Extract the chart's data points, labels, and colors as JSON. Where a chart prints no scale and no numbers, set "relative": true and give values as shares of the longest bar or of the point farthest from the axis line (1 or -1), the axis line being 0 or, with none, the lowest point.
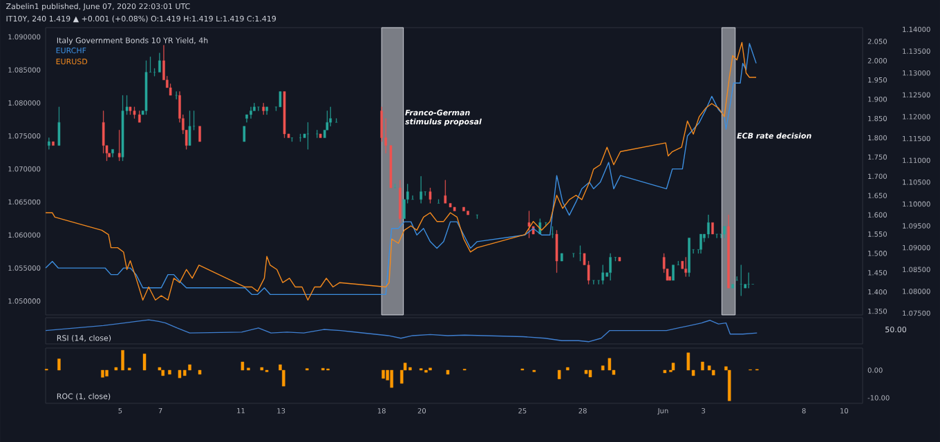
{
  "chart_data": [
    {
      "type": "candlestick",
      "title": "Italy Government Bonds 10 YR Yield, 4h",
      "annotations": [
        "Zabelin1 published, June 07, 2020 22:03:01 UTC",
        "IT10Y, 240 1.419 ▲ +0.001 (+0.08%) O:1.419 H:1.419 L:1.419 C:1.419"
      ],
      "x": [
        "2020-05-01T11:00",
        "2020-05-01T16:00",
        "2020-05-01T23:00",
        "2020-05-04T04:00",
        "2020-05-04T08:00",
        "2020-05-04T11:00",
        "2020-05-04T15:00",
        "2020-05-04T23:00",
        "2020-05-05T03:00",
        "2020-05-05T08:00",
        "2020-05-05T12:00",
        "2020-05-05T17:00",
        "2020-05-05T23:00",
        "2020-05-06T03:00",
        "2020-05-06T07:00",
        "2020-05-06T12:00",
        "2020-05-06T17:00",
        "2020-05-06T23:00",
        "2020-05-07T04:00",
        "2020-05-07T08:00",
        "2020-05-07T12:00",
        "2020-05-07T19:00",
        "2020-05-07T23:00",
        "2020-05-08T03:00",
        "2020-05-08T07:00",
        "2020-05-08T11:00",
        "2020-05-08T16:00",
        "2020-05-08T23:00",
        "2020-05-11T04:00",
        "2020-05-11T07:00",
        "2020-05-11T12:00",
        "2020-05-11T16:00",
        "2020-05-11T21:00",
        "2020-05-12T03:00",
        "2020-05-12T07:00",
        "2020-05-12T18:00",
        "2020-05-12T23:00",
        "2020-05-13T04:00",
        "2020-05-13T09:00",
        "2020-05-13T13:00",
        "2020-05-13T23:00",
        "2020-05-14T04:00",
        "2020-05-14T08:00",
        "2020-05-14T19:00",
        "2020-05-14T23:00",
        "2020-05-15T04:00",
        "2020-05-15T07:00",
        "2020-05-15T11:00",
        "2020-05-15T18:00",
        "2020-05-18T00:00",
        "2020-05-18T05:00",
        "2020-05-18T11:00",
        "2020-05-18T16:00",
        "2020-05-18T22:00",
        "2020-05-19T03:00",
        "2020-05-19T07:00",
        "2020-05-19T13:00",
        "2020-05-19T23:00",
        "2020-05-20T04:00",
        "2020-05-20T10:00",
        "2020-05-20T20:00",
        "2020-05-21T04:00",
        "2020-05-21T10:00",
        "2020-05-21T15:00",
        "2020-05-22T02:00",
        "2020-05-22T07:00",
        "2020-05-22T18:00",
        "2020-05-25T08:00",
        "2020-05-25T13:00",
        "2020-05-25T21:00",
        "2020-05-26T04:00",
        "2020-05-26T12:00",
        "2020-05-26T17:00",
        "2020-05-26T23:00",
        "2020-05-27T13:00",
        "2020-05-27T21:00",
        "2020-05-28T02:00",
        "2020-05-28T07:00",
        "2020-05-28T13:00",
        "2020-05-28T19:00",
        "2020-05-29T00:00",
        "2020-05-29T05:00",
        "2020-05-29T09:00",
        "2020-05-29T15:00",
        "2020-05-29T20:00",
        "2020-06-01T01:00",
        "2020-06-01T05:00",
        "2020-06-01T08:00",
        "2020-06-01T12:00",
        "2020-06-01T18:00",
        "2020-06-01T23:00",
        "2020-06-02T03:00",
        "2020-06-02T07:00",
        "2020-06-02T12:00",
        "2020-06-02T18:00",
        "2020-06-02T21:00",
        "2020-06-03T01:00",
        "2020-06-03T06:00",
        "2020-06-03T11:00",
        "2020-06-03T16:00",
        "2020-06-03T21:00",
        "2020-06-04T01:00",
        "2020-06-04T06:00",
        "2020-06-04T11:00",
        "2020-06-04T16:00",
        "2020-06-04T21:00",
        "2020-06-05T02:00",
        "2020-06-05T06:00",
        "2020-06-05T11:00"
      ],
      "ohlc": [
        [
          1.78,
          1.8,
          1.77,
          1.79
        ],
        [
          1.79,
          1.79,
          1.78,
          1.78
        ],
        [
          1.78,
          1.88,
          1.78,
          1.84
        ],
        [
          1.84,
          1.87,
          1.76,
          1.78
        ],
        [
          1.78,
          1.78,
          1.74,
          1.76
        ],
        [
          1.76,
          1.76,
          1.75,
          1.75
        ],
        [
          1.76,
          1.77,
          1.75,
          1.77
        ],
        [
          1.76,
          1.82,
          1.74,
          1.75
        ],
        [
          1.75,
          1.91,
          1.74,
          1.87
        ],
        [
          1.87,
          1.91,
          1.86,
          1.88
        ],
        [
          1.88,
          1.88,
          1.86,
          1.87
        ],
        [
          1.87,
          1.88,
          1.85,
          1.86
        ],
        [
          1.86,
          1.87,
          1.84,
          1.84
        ],
        [
          1.86,
          1.87,
          1.86,
          1.87
        ],
        [
          1.87,
          2.0,
          1.86,
          1.97
        ],
        [
          1.97,
          2.01,
          1.97,
          1.97
        ],
        [
          1.97,
          1.98,
          1.96,
          1.97
        ],
        [
          1.97,
          2.02,
          1.97,
          2.0
        ],
        [
          2.0,
          2.04,
          1.95,
          1.95
        ],
        [
          1.95,
          1.96,
          1.93,
          1.93
        ],
        [
          1.93,
          1.94,
          1.91,
          1.91
        ],
        [
          1.91,
          1.92,
          1.9,
          1.91
        ],
        [
          1.91,
          1.92,
          1.84,
          1.85
        ],
        [
          1.85,
          1.86,
          1.81,
          1.82
        ],
        [
          1.82,
          1.82,
          1.77,
          1.78
        ],
        [
          1.78,
          1.87,
          1.78,
          1.83
        ],
        [
          1.83,
          1.87,
          1.82,
          1.83
        ],
        [
          1.83,
          1.83,
          1.79,
          1.79
        ],
        [
          1.79,
          1.83,
          1.79,
          1.83
        ],
        [
          1.85,
          1.86,
          1.84,
          1.86
        ],
        [
          1.86,
          1.88,
          1.85,
          1.87
        ],
        [
          1.87,
          1.89,
          1.87,
          1.88
        ],
        [
          1.88,
          1.88,
          1.87,
          1.88
        ],
        [
          1.88,
          1.89,
          1.86,
          1.87
        ],
        [
          1.87,
          1.88,
          1.86,
          1.88
        ],
        [
          1.88,
          1.88,
          1.87,
          1.88
        ],
        [
          1.88,
          1.92,
          1.88,
          1.92
        ],
        [
          1.92,
          1.92,
          1.8,
          1.81
        ],
        [
          1.81,
          1.81,
          1.8,
          1.8
        ],
        [
          1.8,
          1.8,
          1.79,
          1.8
        ],
        [
          1.8,
          1.81,
          1.79,
          1.8
        ],
        [
          1.8,
          1.81,
          1.8,
          1.81
        ],
        [
          1.81,
          1.84,
          1.77,
          1.81
        ],
        [
          1.81,
          1.82,
          1.8,
          1.81
        ],
        [
          1.81,
          1.81,
          1.8,
          1.8
        ],
        [
          1.8,
          1.82,
          1.8,
          1.82
        ],
        [
          1.82,
          1.87,
          1.82,
          1.84
        ],
        [
          1.84,
          1.88,
          1.83,
          1.85
        ],
        [
          1.84,
          1.85,
          1.84,
          1.84
        ],
        [
          1.87,
          1.88,
          1.79,
          1.8
        ],
        [
          1.8,
          1.85,
          1.76,
          1.78
        ],
        [
          1.78,
          1.78,
          1.67,
          1.67
        ],
        [
          1.67,
          1.68,
          1.67,
          1.67
        ],
        [
          1.67,
          1.69,
          1.58,
          1.59
        ],
        [
          1.59,
          1.64,
          1.59,
          1.64
        ],
        [
          1.64,
          1.68,
          1.63,
          1.66
        ],
        [
          1.64,
          1.65,
          1.64,
          1.64
        ],
        [
          1.64,
          1.7,
          1.63,
          1.66
        ],
        [
          1.66,
          1.66,
          1.65,
          1.66
        ],
        [
          1.66,
          1.67,
          1.63,
          1.64
        ],
        [
          1.63,
          1.64,
          1.63,
          1.63
        ],
        [
          1.65,
          1.69,
          1.63,
          1.63
        ],
        [
          1.63,
          1.63,
          1.62,
          1.62
        ],
        [
          1.62,
          1.62,
          1.61,
          1.61
        ],
        [
          1.62,
          1.62,
          1.61,
          1.61
        ],
        [
          1.61,
          1.61,
          1.6,
          1.6
        ],
        [
          1.6,
          1.6,
          1.59,
          1.6
        ],
        [
          1.58,
          1.61,
          1.54,
          1.57
        ],
        [
          1.57,
          1.57,
          1.55,
          1.55
        ],
        [
          1.55,
          1.59,
          1.55,
          1.58
        ],
        [
          1.58,
          1.58,
          1.57,
          1.58
        ],
        [
          1.55,
          1.57,
          1.54,
          1.55
        ],
        [
          1.55,
          1.56,
          1.45,
          1.48
        ],
        [
          1.48,
          1.5,
          1.48,
          1.5
        ],
        [
          1.5,
          1.5,
          1.49,
          1.5
        ],
        [
          1.5,
          1.52,
          1.48,
          1.5
        ],
        [
          1.5,
          1.5,
          1.47,
          1.47
        ],
        [
          1.47,
          1.48,
          1.42,
          1.43
        ],
        [
          1.43,
          1.43,
          1.42,
          1.43
        ],
        [
          1.43,
          1.43,
          1.42,
          1.43
        ],
        [
          1.43,
          1.47,
          1.42,
          1.45
        ],
        [
          1.44,
          1.45,
          1.44,
          1.45
        ],
        [
          1.45,
          1.5,
          1.43,
          1.49
        ],
        [
          1.49,
          1.49,
          1.48,
          1.49
        ],
        [
          1.49,
          1.49,
          1.48,
          1.48
        ],
        [
          1.49,
          1.5,
          1.45,
          1.46
        ],
        [
          1.46,
          1.46,
          1.43,
          1.43
        ],
        [
          1.44,
          1.44,
          1.43,
          1.43
        ],
        [
          1.43,
          1.47,
          1.43,
          1.47
        ],
        [
          1.47,
          1.48,
          1.47,
          1.47
        ],
        [
          1.48,
          1.48,
          1.46,
          1.46
        ],
        [
          1.46,
          1.49,
          1.44,
          1.45
        ],
        [
          1.45,
          1.54,
          1.44,
          1.54
        ],
        [
          1.51,
          1.51,
          1.5,
          1.51
        ],
        [
          1.51,
          1.51,
          1.5,
          1.51
        ],
        [
          1.51,
          1.55,
          1.5,
          1.55
        ],
        [
          1.54,
          1.55,
          1.53,
          1.55
        ],
        [
          1.55,
          1.6,
          1.54,
          1.58
        ],
        [
          1.58,
          1.58,
          1.55,
          1.55
        ],
        [
          1.55,
          1.55,
          1.54,
          1.55
        ],
        [
          1.55,
          1.55,
          1.54,
          1.55
        ],
        [
          1.55,
          1.57,
          1.54,
          1.57
        ],
        [
          1.57,
          1.6,
          1.41,
          1.41
        ],
        [
          1.41,
          1.42,
          1.41,
          1.42
        ],
        [
          1.43,
          1.44,
          1.43,
          1.43
        ],
        [
          1.42,
          1.47,
          1.39,
          1.42
        ],
        [
          1.41,
          1.42,
          1.41,
          1.42
        ],
        [
          1.42,
          1.45,
          1.41,
          1.42
        ],
        [
          1.42,
          1.42,
          1.42,
          1.42
        ]
      ],
      "xlim": [
        "2020-05-01T07:00",
        "2020-06-10T22:00"
      ],
      "ylim": [
        1.3404,
        2.0858
      ],
      "yticks": [
        {
          "value": 1.35,
          "label": "1.350"
        },
        {
          "value": 1.4,
          "label": "1.400"
        },
        {
          "value": 1.45,
          "label": "1.450"
        },
        {
          "value": 1.5,
          "label": "1.500"
        },
        {
          "value": 1.55,
          "label": "1.550"
        },
        {
          "value": 1.6,
          "label": "1.600"
        },
        {
          "value": 1.65,
          "label": "1.650"
        },
        {
          "value": 1.7,
          "label": "1.700"
        },
        {
          "value": 1.75,
          "label": "1.750"
        },
        {
          "value": 1.8,
          "label": "1.800"
        },
        {
          "value": 1.85,
          "label": "1.850"
        },
        {
          "value": 1.9,
          "label": "1.900"
        },
        {
          "value": 1.95,
          "label": "1.950"
        },
        {
          "value": 2.0,
          "label": "2.000"
        },
        {
          "value": 2.05,
          "label": "2.050"
        }
      ],
      "y2lim": [
        1.0479,
        1.0914
      ],
      "y2ticks": [
        {
          "value": 1.05,
          "label": "1.050000"
        },
        {
          "value": 1.055,
          "label": "1.055000"
        },
        {
          "value": 1.06,
          "label": "1.060000"
        },
        {
          "value": 1.065,
          "label": "1.065000"
        },
        {
          "value": 1.07,
          "label": "1.070000"
        },
        {
          "value": 1.075,
          "label": "1.075000"
        },
        {
          "value": 1.08,
          "label": "1.080000"
        },
        {
          "value": 1.085,
          "label": "1.085000"
        },
        {
          "value": 1.09,
          "label": "1.090000"
        }
      ],
      "y3lim": [
        1.0746,
        1.1404
      ],
      "y3ticks": [
        {
          "value": 1.075,
          "label": "1.07500"
        },
        {
          "value": 1.08,
          "label": "1.08000"
        },
        {
          "value": 1.085,
          "label": "1.08500"
        },
        {
          "value": 1.09,
          "label": "1.09000"
        },
        {
          "value": 1.095,
          "label": "1.09500"
        },
        {
          "value": 1.1,
          "label": "1.10000"
        },
        {
          "value": 1.105,
          "label": "1.10500"
        },
        {
          "value": 1.11,
          "label": "1.11000"
        },
        {
          "value": 1.115,
          "label": "1.11500"
        },
        {
          "value": 1.12,
          "label": "1.12000"
        },
        {
          "value": 1.125,
          "label": "1.12500"
        },
        {
          "value": 1.13,
          "label": "1.13000"
        },
        {
          "value": 1.135,
          "label": "1.13500"
        },
        {
          "value": 1.14,
          "label": "1.14000"
        }
      ],
      "bands": [
        {
          "axis": "x",
          "from": "2020-05-18T00:00",
          "to": "2020-05-19T02:00",
          "label": "Franco-German stimulus proposal",
          "color": "#7a7d85"
        },
        {
          "axis": "x",
          "from": "2020-06-03T22:00",
          "to": "2020-06-04T14:00",
          "label": "ECB rate decision",
          "color": "#7a7d85"
        }
      ],
      "series": [
        {
          "name": "EURCHF",
          "type": "line",
          "axis": "y2",
          "color": "#3d8fe0",
          "x": [
            "2020-05-01T07:00",
            "2020-05-01T15:00",
            "2020-05-01T22:00",
            "2020-05-04T06:00",
            "2020-05-04T13:00",
            "2020-05-04T21:00",
            "2020-05-05T04:00",
            "2020-05-05T12:00",
            "2020-05-05T19:00",
            "2020-05-06T03:00",
            "2020-05-06T10:00",
            "2020-05-06T18:00",
            "2020-05-07T01:00",
            "2020-05-07T09:00",
            "2020-05-07T16:00",
            "2020-05-07T23:00",
            "2020-05-08T07:00",
            "2020-05-08T14:00",
            "2020-05-08T22:00",
            "2020-05-11T05:00",
            "2020-05-11T13:00",
            "2020-05-11T20:00",
            "2020-05-12T04:00",
            "2020-05-12T11:00",
            "2020-05-12T19:00",
            "2020-05-13T02:00",
            "2020-05-13T10:00",
            "2020-05-13T17:00",
            "2020-05-14T01:00",
            "2020-05-14T08:00",
            "2020-05-14T16:00",
            "2020-05-14T23:00",
            "2020-05-15T06:00",
            "2020-05-15T14:00",
            "2020-05-15T22:00",
            "2020-05-18T05:00",
            "2020-05-18T09:00",
            "2020-05-18T12:00",
            "2020-05-18T20:00",
            "2020-05-19T03:00",
            "2020-05-19T11:00",
            "2020-05-19T18:00",
            "2020-05-20T02:00",
            "2020-05-20T10:00",
            "2020-05-20T18:00",
            "2020-05-21T02:00",
            "2020-05-21T10:00",
            "2020-05-21T18:00",
            "2020-05-22T02:00",
            "2020-05-22T10:00",
            "2020-05-22T18:00",
            "2020-05-25T03:00",
            "2020-05-25T13:00",
            "2020-05-25T23:00",
            "2020-05-26T09:00",
            "2020-05-26T17:00",
            "2020-05-27T00:00",
            "2020-05-27T08:00",
            "2020-05-27T16:00",
            "2020-05-27T23:00",
            "2020-05-28T08:00",
            "2020-05-28T13:00",
            "2020-05-28T21:00",
            "2020-05-29T07:00",
            "2020-05-29T13:00",
            "2020-05-29T21:00",
            "2020-06-01T04:00",
            "2020-06-01T11:00",
            "2020-06-01T18:00",
            "2020-06-01T23:00",
            "2020-06-02T05:00",
            "2020-06-02T12:00",
            "2020-06-02T19:00",
            "2020-06-03T03:00",
            "2020-06-03T10:00",
            "2020-06-03T18:00",
            "2020-06-04T01:00",
            "2020-06-04T03:00",
            "2020-06-04T07:00",
            "2020-06-04T12:00",
            "2020-06-04T20:00",
            "2020-06-04T23:00",
            "2020-06-05T03:00",
            "2020-06-05T07:00",
            "2020-06-05T15:00"
          ],
          "values": [
            1.055,
            1.056,
            1.055,
            1.055,
            1.054,
            1.054,
            1.055,
            1.055,
            1.054,
            1.052,
            1.052,
            1.052,
            1.052,
            1.054,
            1.054,
            1.053,
            1.052,
            1.052,
            1.052,
            1.052,
            1.051,
            1.051,
            1.052,
            1.051,
            1.051,
            1.051,
            1.051,
            1.051,
            1.051,
            1.051,
            1.051,
            1.051,
            1.051,
            1.051,
            1.051,
            1.051,
            1.057,
            1.061,
            1.061,
            1.062,
            1.062,
            1.06,
            1.061,
            1.059,
            1.058,
            1.059,
            1.062,
            1.062,
            1.06,
            1.058,
            1.059,
            1.06,
            1.061,
            1.06,
            1.06,
            1.069,
            1.065,
            1.063,
            1.065,
            1.067,
            1.068,
            1.067,
            1.068,
            1.071,
            1.067,
            1.069,
            1.067,
            1.07,
            1.07,
            1.07,
            1.075,
            1.076,
            1.077,
            1.079,
            1.081,
            1.079,
            1.078,
            1.076,
            1.079,
            1.083,
            1.083,
            1.086,
            1.085,
            1.089,
            1.086
          ]
        },
        {
          "name": "EURUSD",
          "type": "line",
          "axis": "y3",
          "color": "#f48a1e",
          "x": [
            "2020-05-01T07:00",
            "2020-05-01T15:00",
            "2020-05-01T18:00",
            "2020-05-04T02:00",
            "2020-05-04T10:00",
            "2020-05-04T13:00",
            "2020-05-04T21:00",
            "2020-05-05T04:00",
            "2020-05-05T08:00",
            "2020-05-05T12:00",
            "2020-05-05T19:00",
            "2020-05-06T03:00",
            "2020-05-06T10:00",
            "2020-05-06T18:00",
            "2020-05-07T01:00",
            "2020-05-07T09:00",
            "2020-05-07T16:00",
            "2020-05-07T23:00",
            "2020-05-08T07:00",
            "2020-05-08T14:00",
            "2020-05-08T22:00",
            "2020-05-11T05:00",
            "2020-05-11T13:00",
            "2020-05-11T20:00",
            "2020-05-12T04:00",
            "2020-05-12T07:00",
            "2020-05-12T11:00",
            "2020-05-12T19:00",
            "2020-05-13T02:00",
            "2020-05-13T10:00",
            "2020-05-13T17:00",
            "2020-05-14T01:00",
            "2020-05-14T08:00",
            "2020-05-14T16:00",
            "2020-05-14T23:00",
            "2020-05-15T06:00",
            "2020-05-15T14:00",
            "2020-05-15T22:00",
            "2020-05-18T05:00",
            "2020-05-18T09:00",
            "2020-05-18T12:00",
            "2020-05-18T20:00",
            "2020-05-19T03:00",
            "2020-05-19T11:00",
            "2020-05-19T18:00",
            "2020-05-20T02:00",
            "2020-05-20T10:00",
            "2020-05-20T18:00",
            "2020-05-21T02:00",
            "2020-05-21T10:00",
            "2020-05-21T18:00",
            "2020-05-22T02:00",
            "2020-05-22T10:00",
            "2020-05-22T18:00",
            "2020-05-25T03:00",
            "2020-05-25T13:00",
            "2020-05-25T23:00",
            "2020-05-26T09:00",
            "2020-05-26T17:00",
            "2020-05-27T00:00",
            "2020-05-27T08:00",
            "2020-05-27T16:00",
            "2020-05-27T23:00",
            "2020-05-28T08:00",
            "2020-05-28T13:00",
            "2020-05-28T21:00",
            "2020-05-29T05:00",
            "2020-05-29T13:00",
            "2020-05-29T21:00",
            "2020-06-01T03:00",
            "2020-06-01T06:00",
            "2020-06-01T11:00",
            "2020-06-01T22:00",
            "2020-06-02T05:00",
            "2020-06-02T12:00",
            "2020-06-02T19:00",
            "2020-06-03T03:00",
            "2020-06-03T10:00",
            "2020-06-03T18:00",
            "2020-06-04T01:00",
            "2020-06-04T07:00",
            "2020-06-04T11:00",
            "2020-06-04T16:00",
            "2020-06-04T22:00",
            "2020-06-05T03:00",
            "2020-06-05T07:00",
            "2020-06-05T15:00"
          ],
          "values": [
            1.098,
            1.098,
            1.097,
            1.094,
            1.093,
            1.09,
            1.09,
            1.089,
            1.085,
            1.087,
            1.083,
            1.078,
            1.081,
            1.078,
            1.079,
            1.078,
            1.083,
            1.082,
            1.085,
            1.083,
            1.086,
            1.081,
            1.081,
            1.08,
            1.083,
            1.088,
            1.086,
            1.085,
            1.082,
            1.083,
            1.081,
            1.081,
            1.078,
            1.081,
            1.081,
            1.083,
            1.081,
            1.082,
            1.081,
            1.082,
            1.092,
            1.091,
            1.094,
            1.095,
            1.094,
            1.097,
            1.098,
            1.096,
            1.096,
            1.098,
            1.097,
            1.092,
            1.089,
            1.09,
            1.093,
            1.096,
            1.094,
            1.096,
            1.102,
            1.099,
            1.101,
            1.102,
            1.101,
            1.105,
            1.108,
            1.109,
            1.113,
            1.109,
            1.112,
            1.114,
            1.111,
            1.112,
            1.113,
            1.119,
            1.116,
            1.12,
            1.122,
            1.123,
            1.122,
            1.12,
            1.129,
            1.134,
            1.133,
            1.137,
            1.13,
            1.129,
            1.129
          ]
        }
      ],
      "tick_labels": "y"
    },
    {
      "type": "line",
      "title": "RSI (14, close)",
      "relative": true,
      "color": "#3f7fd0",
      "annotations": [
        "50.00"
      ],
      "x": [
        "2020-05-01T07:00",
        "2020-05-04T04:00",
        "2020-05-05T05:00",
        "2020-05-05T19:00",
        "2020-05-06T10:00",
        "2020-05-06T22:00",
        "2020-05-07T06:00",
        "2020-05-07T20:00",
        "2020-05-08T11:00",
        "2020-05-11T01:00",
        "2020-05-11T21:00",
        "2020-05-12T12:00",
        "2020-05-13T07:00",
        "2020-05-14T03:00",
        "2020-05-15T03:00",
        "2020-05-15T23:00",
        "2020-05-18T08:00",
        "2020-05-18T23:00",
        "2020-05-19T13:00",
        "2020-05-20T10:00",
        "2020-05-21T07:00",
        "2020-05-22T03:00",
        "2020-05-25T01:00",
        "2020-05-26T03:00",
        "2020-05-26T23:00",
        "2020-05-27T19:00",
        "2020-05-28T07:00",
        "2020-05-28T22:00",
        "2020-05-29T08:00",
        "2020-06-01T04:00",
        "2020-06-01T18:00",
        "2020-06-02T08:00",
        "2020-06-02T22:00",
        "2020-06-03T08:00",
        "2020-06-03T18:00",
        "2020-06-04T03:00",
        "2020-06-04T08:00",
        "2020-06-04T23:00",
        "2020-06-05T16:00"
      ],
      "values": [
        0.51,
        0.74,
        0.86,
        0.93,
        1.0,
        0.93,
        0.86,
        0.63,
        0.4,
        0.44,
        0.63,
        0.4,
        0.44,
        0.4,
        0.56,
        0.51,
        0.28,
        0.16,
        0.28,
        0.33,
        0.28,
        0.3,
        0.23,
        0.16,
        0.05,
        0.05,
        0.0,
        0.16,
        0.51,
        0.51,
        0.63,
        0.74,
        0.86,
        0.98,
        0.81,
        0.86,
        0.35,
        0.35,
        0.4
      ],
      "xlim": [
        "2020-05-01T07:00",
        "2020-06-10T22:00"
      ],
      "tick_labels": false
    },
    {
      "type": "bar",
      "title": "ROC (1, close)",
      "color": "#ff9800",
      "x": [
        "2020-05-01T08:00",
        "2020-05-01T23:00",
        "2020-05-04T03:00",
        "2020-05-04T08:00",
        "2020-05-04T19:00",
        "2020-05-05T03:00",
        "2020-05-05T11:00",
        "2020-05-06T05:00",
        "2020-05-06T23:00",
        "2020-05-07T03:00",
        "2020-05-07T11:00",
        "2020-05-07T23:00",
        "2020-05-08T05:00",
        "2020-05-08T11:00",
        "2020-05-08T23:00",
        "2020-05-11T02:00",
        "2020-05-11T09:00",
        "2020-05-12T01:00",
        "2020-05-12T07:00",
        "2020-05-12T23:00",
        "2020-05-13T03:00",
        "2020-05-14T07:00",
        "2020-05-15T02:00",
        "2020-05-15T08:00",
        "2020-05-18T02:00",
        "2020-05-18T07:00",
        "2020-05-18T12:00",
        "2020-05-19T00:00",
        "2020-05-19T04:00",
        "2020-05-19T10:00",
        "2020-05-19T23:00",
        "2020-05-20T05:00",
        "2020-05-20T10:00",
        "2020-05-21T07:00",
        "2020-05-22T03:00",
        "2020-05-25T00:00",
        "2020-05-25T14:00",
        "2020-05-26T20:00",
        "2020-05-27T06:00",
        "2020-05-28T04:00",
        "2020-05-28T09:00",
        "2020-05-29T00:00",
        "2020-05-29T08:00",
        "2020-05-29T13:00",
        "2020-06-01T02:00",
        "2020-06-01T09:00",
        "2020-06-01T12:00",
        "2020-06-02T06:00",
        "2020-06-02T12:00",
        "2020-06-02T23:00",
        "2020-06-03T07:00",
        "2020-06-03T12:00",
        "2020-06-04T03:00",
        "2020-06-04T07:00",
        "2020-06-05T08:00",
        "2020-06-05T16:00"
      ],
      "values": [
        0.4,
        4.1,
        -2.6,
        -2.2,
        1.0,
        7.2,
        0.8,
        5.9,
        1.0,
        -2.0,
        -1.5,
        -2.8,
        -2.0,
        2.0,
        -1.5,
        3.0,
        0.8,
        1.0,
        -0.6,
        2.0,
        -5.8,
        0.6,
        0.7,
        0.5,
        -3.0,
        -3.6,
        -6.3,
        -4.8,
        2.6,
        1.0,
        0.6,
        -0.8,
        0.8,
        -1.5,
        0.4,
        0.5,
        -0.6,
        -3.2,
        1.0,
        -1.3,
        -2.5,
        1.6,
        4.3,
        -1.6,
        -1.0,
        -0.6,
        2.6,
        6.3,
        -2.0,
        3.0,
        1.6,
        -1.8,
        1.3,
        -11.1,
        0.2,
        0.3
      ],
      "xlim": [
        "2020-05-01T07:00",
        "2020-06-10T22:00"
      ],
      "ylim": [
        -12,
        8
      ],
      "yticks": [
        {
          "value": 0,
          "label": "0.00"
        },
        {
          "value": -10,
          "label": "-10.00"
        }
      ],
      "xticks": [
        {
          "value": "2020-05-05",
          "label": "5"
        },
        {
          "value": "2020-05-07",
          "label": "7"
        },
        {
          "value": "2020-05-11",
          "label": "11"
        },
        {
          "value": "2020-05-13",
          "label": "13"
        },
        {
          "value": "2020-05-18",
          "label": "18"
        },
        {
          "value": "2020-05-20",
          "label": "20"
        },
        {
          "value": "2020-05-25",
          "label": "25"
        },
        {
          "value": "2020-05-28",
          "label": "28"
        },
        {
          "value": "2020-06-01",
          "label": "Jun"
        },
        {
          "value": "2020-06-03",
          "label": "3"
        },
        {
          "value": "2020-06-08",
          "label": "8"
        },
        {
          "value": "2020-06-10",
          "label": "10"
        }
      ]
    }
  ]
}
